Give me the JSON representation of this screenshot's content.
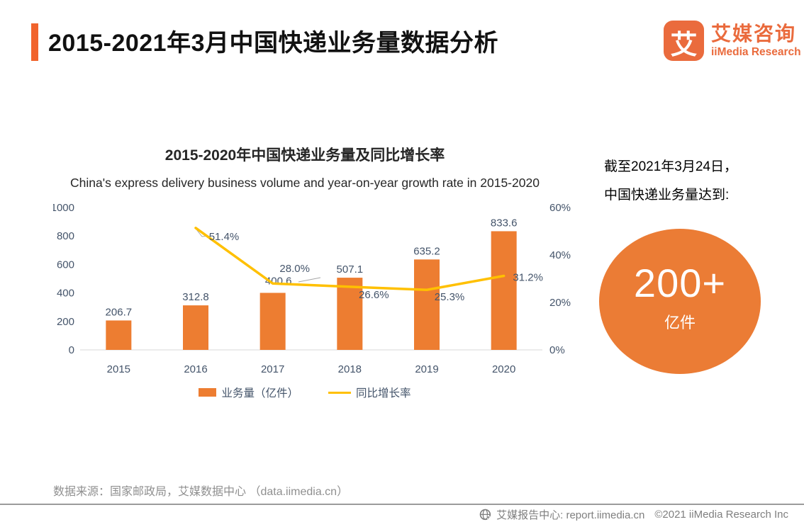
{
  "header": {
    "title": "2015-2021年3月中国快递业务量数据分析",
    "logo": {
      "mark": "艾",
      "name_cn": "艾媒咨询",
      "name_en": "iiMedia Research"
    }
  },
  "chart": {
    "title_cn": "2015-2020年中国快递业务量及同比增长率",
    "title_en": "China's express delivery business volume and year-on-year growth rate in 2015-2020"
  },
  "chart_data": {
    "type": "bar+line",
    "categories": [
      "2015",
      "2016",
      "2017",
      "2018",
      "2019",
      "2020"
    ],
    "series": [
      {
        "name": "业务量（亿件）",
        "type": "bar",
        "axis": "left",
        "color": "#ED7D31",
        "values": [
          206.7,
          312.8,
          400.6,
          507.1,
          635.2,
          833.6
        ]
      },
      {
        "name": "同比增长率",
        "type": "line",
        "axis": "right",
        "color": "#FFC000",
        "x": [
          "2016",
          "2017",
          "2018",
          "2019",
          "2020"
        ],
        "values": [
          51.4,
          28.0,
          26.6,
          25.3,
          31.2
        ],
        "unit": "%"
      }
    ],
    "left_axis": {
      "ticks": [
        0,
        200,
        400,
        600,
        800,
        1000
      ],
      "min": 0,
      "max": 1000
    },
    "right_axis": {
      "tick_labels": [
        "0%",
        "20%",
        "40%",
        "60%"
      ],
      "ticks": [
        0,
        20,
        40,
        60
      ],
      "min": 0,
      "max": 60
    },
    "grid": false,
    "legend_position": "bottom",
    "label_color": "#44546A"
  },
  "highlight": {
    "line1": "截至2021年3月24日，",
    "line2": "中国快递业务量达到:",
    "circle_value": "200+",
    "circle_unit": "亿件"
  },
  "source": "数据来源：国家邮政局，艾媒数据中心 （data.iimedia.cn）",
  "footer": {
    "report_center": "艾媒报告中心: report.iimedia.cn",
    "copyright": "©2021  iiMedia Research  Inc"
  }
}
